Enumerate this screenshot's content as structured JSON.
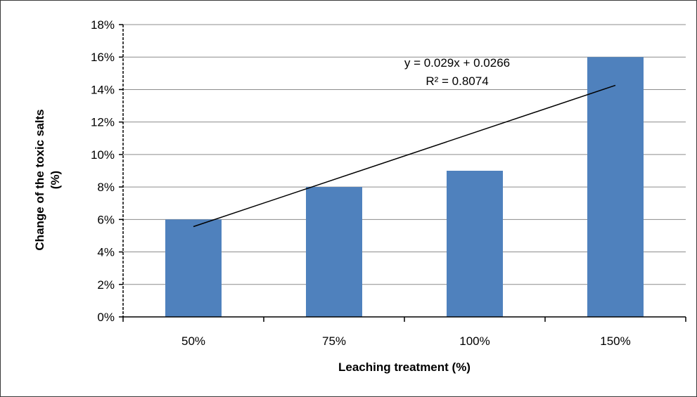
{
  "chart_data": {
    "type": "bar",
    "categories": [
      "50%",
      "75%",
      "100%",
      "150%"
    ],
    "values": [
      0.06,
      0.08,
      0.09,
      0.16
    ],
    "ylim": [
      0,
      0.18
    ],
    "yticks": [
      "0%",
      "2%",
      "4%",
      "6%",
      "8%",
      "10%",
      "12%",
      "14%",
      "16%",
      "18%"
    ],
    "ytick_values": [
      0,
      0.02,
      0.04,
      0.06,
      0.08,
      0.1,
      0.12,
      0.14,
      0.16,
      0.18
    ],
    "xlabel": "Leaching treatment (%)",
    "ylabel_line1": "Change of the toxic salts",
    "ylabel_line2": "(%)",
    "grid": true,
    "bar_color": "#4f81bd",
    "trendline": {
      "type": "linear",
      "slope": 0.029,
      "intercept": 0.0266,
      "equation": "y = 0.029x + 0.0266",
      "r_squared": "R² = 0.8074",
      "color": "#000000"
    }
  }
}
